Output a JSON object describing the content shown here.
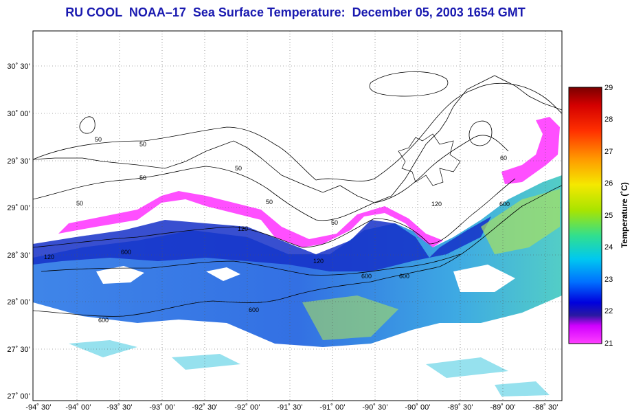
{
  "title": "RU COOL  NOAA–17  Sea Surface Temperature:  December 05, 2003 1654 GMT",
  "map": {
    "latitude_labels": [
      "30˚ 30’",
      "30˚ 00’",
      "29˚ 30’",
      "29˚ 00’",
      "28˚ 30’",
      "28˚ 00’",
      "27˚ 30’",
      "27˚ 00’"
    ],
    "longitude_labels": [
      "-94˚ 30’",
      "-94˚ 00’",
      "-93˚ 30’",
      "-93˚ 00’",
      "-92˚ 30’",
      "-92˚ 00’",
      "-91˚ 30’",
      "-91˚ 00’",
      "-90˚ 30’",
      "-90˚ 00’",
      "-89˚ 30’",
      "-89˚ 00’",
      "-88˚ 30’"
    ],
    "contour_labels": [
      "50",
      "50",
      "50",
      "50",
      "50",
      "50",
      "50",
      "120",
      "120",
      "120",
      "120",
      "600",
      "600",
      "600",
      "600",
      "600",
      "60",
      "600"
    ]
  },
  "colorbar": {
    "label": "Temperature (˚C)",
    "ticks": [
      "29",
      "28",
      "27",
      "26",
      "25",
      "24",
      "23",
      "22",
      "21"
    ],
    "colors": [
      "#8b0000",
      "#d40000",
      "#ff2a00",
      "#ff8a00",
      "#f3e600",
      "#9ee600",
      "#2ee08a",
      "#00cfe6",
      "#0080ff",
      "#0000e0",
      "#1010a0",
      "#ff00ff"
    ]
  }
}
